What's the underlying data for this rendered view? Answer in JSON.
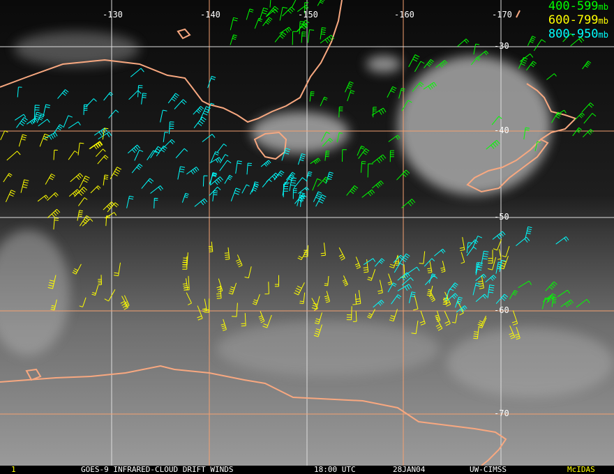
{
  "legend": {
    "items": [
      {
        "label": "400-599",
        "unit": "mb",
        "color": "#00ff00"
      },
      {
        "label": "600-799",
        "unit": "mb",
        "color": "#ffff00"
      },
      {
        "label": "800-950",
        "unit": "mb",
        "color": "#00ffff"
      }
    ]
  },
  "grid": {
    "longitude_labels": [
      "-130",
      "-140",
      "-150",
      "-160",
      "-170"
    ],
    "latitude_labels": [
      "-30",
      "-40",
      "-50",
      "-60",
      "-70"
    ],
    "line_color": "#f4a070"
  },
  "coastline_color": "#f8a880",
  "footer": {
    "frame": "1",
    "satellite": "GOES-9 INFRARED-CLOUD DRIFT WINDS",
    "time": "18:00 UTC",
    "date": "28JAN04",
    "source": "UW-CIMSS",
    "software": "McIDAS"
  }
}
